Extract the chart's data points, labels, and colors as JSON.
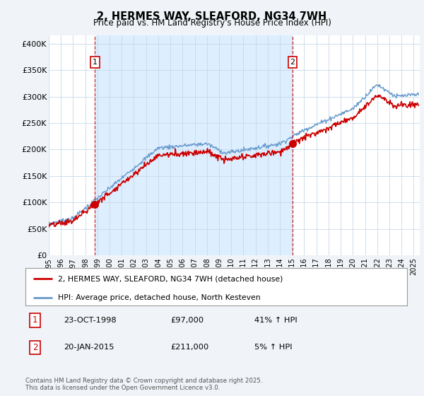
{
  "title": "2, HERMES WAY, SLEAFORD, NG34 7WH",
  "subtitle": "Price paid vs. HM Land Registry's House Price Index (HPI)",
  "ylabel_ticks": [
    "£0",
    "£50K",
    "£100K",
    "£150K",
    "£200K",
    "£250K",
    "£300K",
    "£350K",
    "£400K"
  ],
  "ytick_values": [
    0,
    50000,
    100000,
    150000,
    200000,
    250000,
    300000,
    350000,
    400000
  ],
  "ylim": [
    0,
    415000
  ],
  "xlim_start": 1995.0,
  "xlim_end": 2025.5,
  "xticks": [
    1995,
    1996,
    1997,
    1998,
    1999,
    2000,
    2001,
    2002,
    2003,
    2004,
    2005,
    2006,
    2007,
    2008,
    2009,
    2010,
    2011,
    2012,
    2013,
    2014,
    2015,
    2016,
    2017,
    2018,
    2019,
    2020,
    2021,
    2022,
    2023,
    2024,
    2025
  ],
  "red_line_color": "#cc0000",
  "blue_line_color": "#6699cc",
  "vline_color": "#cc0000",
  "shade_color": "#ddeeff",
  "legend_label_red": "2, HERMES WAY, SLEAFORD, NG34 7WH (detached house)",
  "legend_label_blue": "HPI: Average price, detached house, North Kesteven",
  "sale1_label": "1",
  "sale1_date": "23-OCT-1998",
  "sale1_price": "£97,000",
  "sale1_hpi": "41% ↑ HPI",
  "sale1_year": 1998.8,
  "sale1_value": 97000,
  "sale2_label": "2",
  "sale2_date": "20-JAN-2015",
  "sale2_price": "£211,000",
  "sale2_hpi": "5% ↑ HPI",
  "sale2_year": 2015.05,
  "sale2_value": 211000,
  "footnote": "Contains HM Land Registry data © Crown copyright and database right 2025.\nThis data is licensed under the Open Government Licence v3.0.",
  "background_color": "#f0f4f8",
  "plot_bg_color": "#ffffff"
}
